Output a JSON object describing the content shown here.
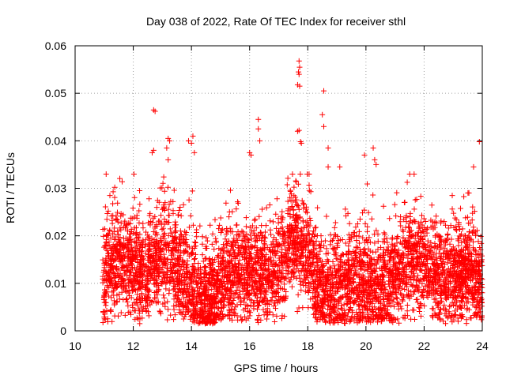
{
  "chart_data": {
    "type": "scatter",
    "title": "Day 038 of 2022, Rate Of TEC Index for receiver sthl",
    "xlabel": "GPS time / hours",
    "ylabel": "ROTI / TECUs",
    "xlim": [
      10,
      24
    ],
    "ylim": [
      0,
      0.06
    ],
    "xticks": [
      10,
      12,
      14,
      16,
      18,
      20,
      22,
      24
    ],
    "yticks": [
      0,
      0.01,
      0.02,
      0.03,
      0.04,
      0.05,
      0.06
    ],
    "xtick_labels": [
      "10",
      "12",
      "14",
      "16",
      "18",
      "20",
      "22",
      "24"
    ],
    "ytick_labels": [
      "0",
      "0.01",
      "0.02",
      "0.03",
      "0.04",
      "0.05",
      "0.06"
    ],
    "grid": true,
    "marker": "plus",
    "series_color": "#ff0000",
    "series": [
      {
        "name": "ROTI",
        "x_range": [
          10.95,
          24.0
        ],
        "notable_points": [
          [
            12.7,
            0.0465
          ],
          [
            12.75,
            0.0462
          ],
          [
            12.7,
            0.038
          ],
          [
            12.65,
            0.0375
          ],
          [
            13.2,
            0.0405
          ],
          [
            13.25,
            0.04
          ],
          [
            13.15,
            0.0385
          ],
          [
            13.2,
            0.036
          ],
          [
            13.9,
            0.04
          ],
          [
            14.05,
            0.041
          ],
          [
            14.0,
            0.0395
          ],
          [
            14.1,
            0.0375
          ],
          [
            16.0,
            0.0375
          ],
          [
            16.05,
            0.037
          ],
          [
            16.3,
            0.0445
          ],
          [
            16.3,
            0.0425
          ],
          [
            16.35,
            0.04
          ],
          [
            17.7,
            0.0568
          ],
          [
            17.72,
            0.0555
          ],
          [
            17.68,
            0.0545
          ],
          [
            17.7,
            0.054
          ],
          [
            17.65,
            0.0518
          ],
          [
            17.72,
            0.0515
          ],
          [
            17.7,
            0.0422
          ],
          [
            17.65,
            0.042
          ],
          [
            17.75,
            0.0398
          ],
          [
            17.78,
            0.0395
          ],
          [
            18.55,
            0.0505
          ],
          [
            18.5,
            0.0455
          ],
          [
            18.55,
            0.043
          ],
          [
            18.7,
            0.0385
          ],
          [
            18.7,
            0.0345
          ],
          [
            19.1,
            0.0345
          ],
          [
            19.95,
            0.037
          ],
          [
            20.25,
            0.0385
          ],
          [
            20.3,
            0.036
          ],
          [
            20.35,
            0.035
          ],
          [
            23.9,
            0.0398
          ],
          [
            23.7,
            0.0345
          ]
        ]
      }
    ]
  }
}
